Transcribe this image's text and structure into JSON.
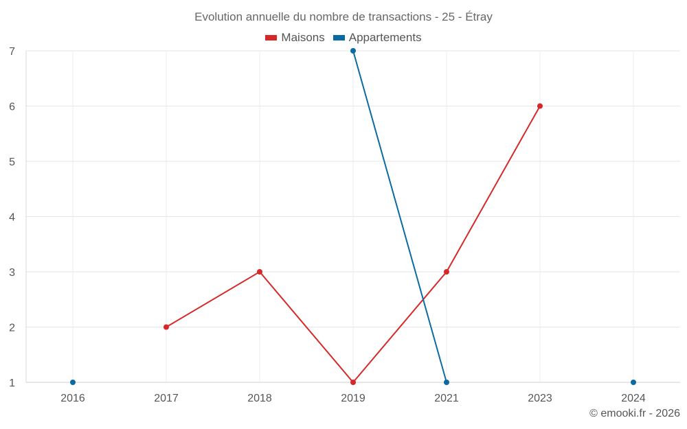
{
  "chart_data": {
    "type": "line",
    "title": "Evolution annuelle du nombre de transactions - 25 - Étray",
    "categories": [
      "2016",
      "2017",
      "2018",
      "2019",
      "2021",
      "2023",
      "2024"
    ],
    "series": [
      {
        "name": "Maisons",
        "color": "#d62828",
        "values": [
          null,
          2,
          3,
          1,
          3,
          6,
          null
        ]
      },
      {
        "name": "Appartements",
        "color": "#0a6aa1",
        "values": [
          1,
          null,
          null,
          7,
          1,
          null,
          1
        ]
      }
    ],
    "ylim": [
      1,
      7
    ],
    "yticks": [
      1,
      2,
      3,
      4,
      5,
      6,
      7
    ],
    "grid": true,
    "legend": "top-center"
  },
  "credit": "© emooki.fr - 2026"
}
